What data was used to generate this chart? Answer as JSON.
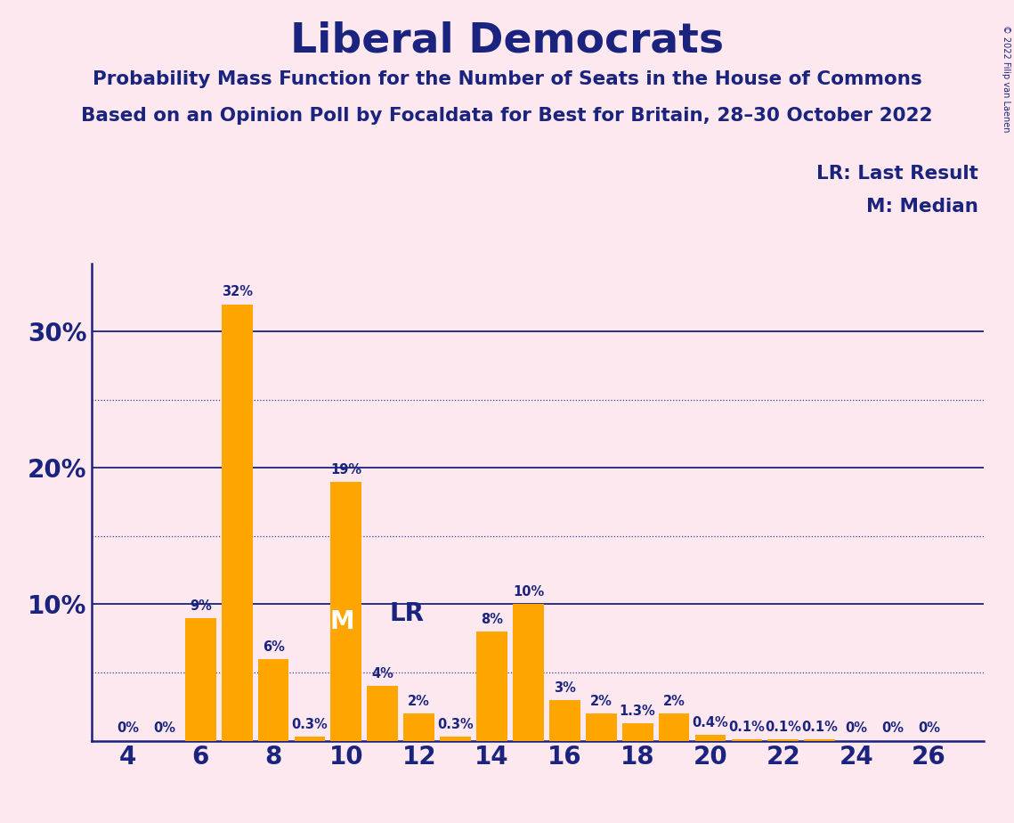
{
  "title": "Liberal Democrats",
  "subtitle1": "Probability Mass Function for the Number of Seats in the House of Commons",
  "subtitle2": "Based on an Opinion Poll by Focaldata for Best for Britain, 28–30 October 2022",
  "copyright": "© 2022 Filip van Laenen",
  "legend_lr": "LR: Last Result",
  "legend_m": "M: Median",
  "background_color": "#fce8ee",
  "bar_color": "#FFA500",
  "text_color": "#1a237e",
  "seats": [
    4,
    5,
    6,
    7,
    8,
    9,
    10,
    11,
    12,
    13,
    14,
    15,
    16,
    17,
    18,
    19,
    20,
    21,
    22,
    23,
    24,
    25,
    26
  ],
  "probabilities": [
    0.0,
    0.0,
    9.0,
    32.0,
    6.0,
    0.3,
    19.0,
    4.0,
    2.0,
    0.3,
    8.0,
    10.0,
    3.0,
    2.0,
    1.3,
    2.0,
    0.4,
    0.1,
    0.1,
    0.1,
    0.0,
    0.0,
    0.0
  ],
  "labels": [
    "0%",
    "0%",
    "9%",
    "32%",
    "6%",
    "0.3%",
    "19%",
    "4%",
    "2%",
    "0.3%",
    "8%",
    "10%",
    "3%",
    "2%",
    "1.3%",
    "2%",
    "0.4%",
    "0.1%",
    "0.1%",
    "0.1%",
    "0%",
    "0%",
    "0%"
  ],
  "median_seat": 10,
  "lr_seat": 11,
  "xlim": [
    3.0,
    27.5
  ],
  "ylim": [
    0,
    35
  ],
  "xticks": [
    4,
    6,
    8,
    10,
    12,
    14,
    16,
    18,
    20,
    22,
    24,
    26
  ],
  "solid_gridlines": [
    10,
    20,
    30
  ],
  "dotted_gridlines": [
    5,
    15,
    25
  ],
  "ytick_positions": [
    10,
    20,
    30
  ],
  "ytick_labels": [
    "10%",
    "20%",
    "30%"
  ]
}
